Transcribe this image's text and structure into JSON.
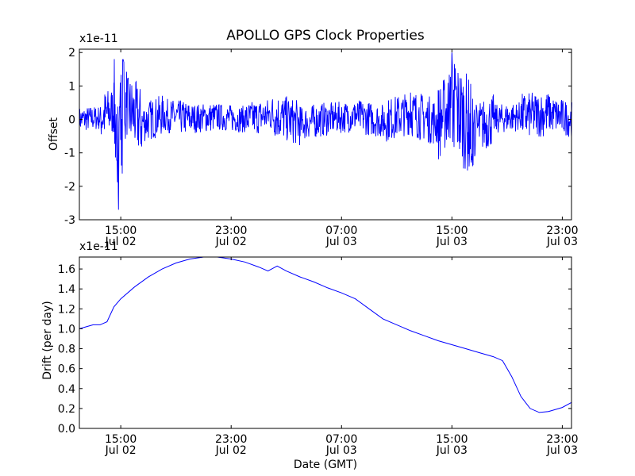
{
  "chart_data": [
    {
      "type": "line",
      "title": "APOLLO GPS Clock Properties",
      "xlabel": "",
      "ylabel": "Offset",
      "y_multiplier": "x1e-11",
      "ylim": [
        -3,
        2.1
      ],
      "y_ticks": [
        2,
        1,
        0,
        -1,
        -2,
        -3
      ],
      "y_tick_labels": [
        "2",
        "1",
        "0",
        "-1",
        "-2",
        "-3"
      ],
      "x_ticks": [
        {
          "time": "15:00",
          "date": "Jul 02"
        },
        {
          "time": "23:00",
          "date": "Jul 02"
        },
        {
          "time": "07:00",
          "date": "Jul 03"
        },
        {
          "time": "15:00",
          "date": "Jul 03"
        },
        {
          "time": "23:00",
          "date": "Jul 03"
        }
      ],
      "grid": false,
      "series": [
        {
          "color": "#0000ff",
          "x": [
            "Jul 02 12:00",
            "Jul 02 13:30",
            "Jul 02 14:30",
            "Jul 02 14:50",
            "Jul 02 15:10",
            "Jul 02 16:30",
            "Jul 02 18:00",
            "Jul 02 20:00",
            "Jul 02 22:00",
            "Jul 03 00:00",
            "Jul 03 02:00",
            "Jul 03 04:00",
            "Jul 03 06:00",
            "Jul 03 08:00",
            "Jul 03 10:00",
            "Jul 03 12:00",
            "Jul 03 14:00",
            "Jul 03 15:00",
            "Jul 03 16:30",
            "Jul 03 18:00",
            "Jul 03 20:00",
            "Jul 03 22:00",
            "Jul 03 23:40"
          ],
          "y": [
            0.0,
            0.2,
            1.1,
            -2.7,
            1.8,
            -0.4,
            0.5,
            0.1,
            0.3,
            0.0,
            0.6,
            -0.5,
            0.1,
            0.4,
            -0.2,
            0.8,
            -0.4,
            2.0,
            -1.4,
            0.0,
            0.4,
            0.7,
            0.0
          ]
        }
      ]
    },
    {
      "type": "line",
      "title": "",
      "xlabel": "Date (GMT)",
      "ylabel": "Drift (per day)",
      "y_multiplier": "x1e-11",
      "ylim": [
        0.0,
        1.72
      ],
      "y_ticks": [
        0.0,
        0.2,
        0.4,
        0.6,
        0.8,
        1.0,
        1.2,
        1.4,
        1.6
      ],
      "y_tick_labels": [
        "0.0",
        "0.2",
        "0.4",
        "0.6",
        "0.8",
        "1.0",
        "1.2",
        "1.4",
        "1.6"
      ],
      "x_ticks": [
        {
          "time": "15:00",
          "date": "Jul 02"
        },
        {
          "time": "23:00",
          "date": "Jul 02"
        },
        {
          "time": "07:00",
          "date": "Jul 03"
        },
        {
          "time": "15:00",
          "date": "Jul 03"
        },
        {
          "time": "23:00",
          "date": "Jul 03"
        }
      ],
      "grid": false,
      "series": [
        {
          "color": "#0000ff",
          "x": [
            "Jul 02 12:00",
            "Jul 02 12:30",
            "Jul 02 13:00",
            "Jul 02 13:30",
            "Jul 02 14:00",
            "Jul 02 14:30",
            "Jul 02 15:00",
            "Jul 02 16:00",
            "Jul 02 17:00",
            "Jul 02 18:00",
            "Jul 02 19:00",
            "Jul 02 20:00",
            "Jul 02 21:00",
            "Jul 02 22:00",
            "Jul 02 23:00",
            "Jul 03 00:00",
            "Jul 03 01:00",
            "Jul 03 01:40",
            "Jul 03 02:20",
            "Jul 03 03:00",
            "Jul 03 04:00",
            "Jul 03 05:00",
            "Jul 03 06:00",
            "Jul 03 07:00",
            "Jul 03 08:00",
            "Jul 03 09:00",
            "Jul 03 10:00",
            "Jul 03 11:00",
            "Jul 03 12:00",
            "Jul 03 13:00",
            "Jul 03 14:00",
            "Jul 03 15:00",
            "Jul 03 16:00",
            "Jul 03 17:00",
            "Jul 03 18:00",
            "Jul 03 18:40",
            "Jul 03 19:20",
            "Jul 03 20:00",
            "Jul 03 20:40",
            "Jul 03 21:20",
            "Jul 03 22:00",
            "Jul 03 23:00",
            "Jul 03 23:40"
          ],
          "y": [
            1.0,
            1.02,
            1.04,
            1.04,
            1.07,
            1.22,
            1.3,
            1.42,
            1.52,
            1.6,
            1.66,
            1.7,
            1.72,
            1.72,
            1.7,
            1.67,
            1.62,
            1.58,
            1.63,
            1.58,
            1.52,
            1.47,
            1.41,
            1.36,
            1.3,
            1.2,
            1.1,
            1.04,
            0.98,
            0.93,
            0.88,
            0.84,
            0.8,
            0.76,
            0.72,
            0.68,
            0.52,
            0.32,
            0.2,
            0.16,
            0.17,
            0.21,
            0.26
          ]
        }
      ]
    }
  ]
}
